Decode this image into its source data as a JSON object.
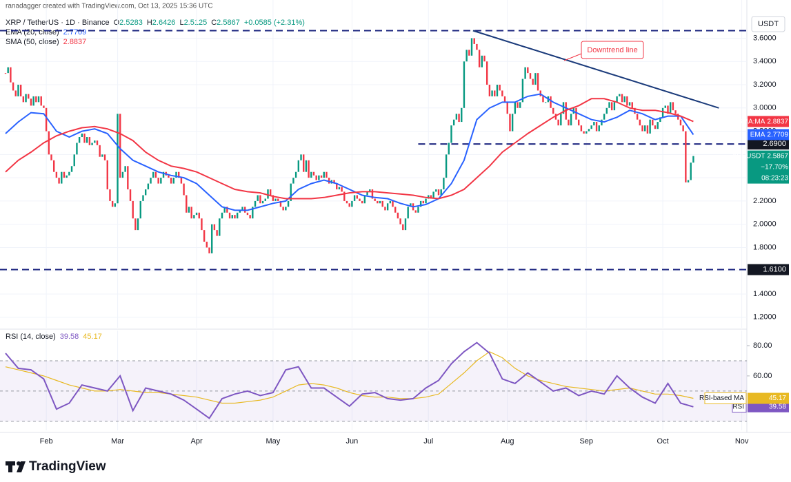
{
  "header": {
    "credit": "ranadagger created with TradingView.com, Oct 13, 2025 15:36 UTC",
    "symbol": "XRP / TetherUS · 1D · Binance",
    "ohlc": [
      {
        "key": "O",
        "value": 2.5283
      },
      {
        "key": "H",
        "value": 2.6426
      },
      {
        "key": "L",
        "value": 2.5125
      },
      {
        "key": "C",
        "value": 2.5867
      }
    ],
    "change": "+0.0585 (+2.31%)"
  },
  "footer": {
    "brand": "TradingView"
  },
  "chart_data": [
    {
      "type": "candlestick",
      "unit": "USDT",
      "xlim": [
        0,
        291
      ],
      "ylim": [
        1.11,
        3.81
      ],
      "grid": true,
      "yticks": [
        {
          "value": 3.6,
          "label": "3.6000"
        },
        {
          "value": 3.4,
          "label": "3.4000"
        },
        {
          "value": 3.2,
          "label": "3.2000"
        },
        {
          "value": 3.0,
          "label": "3.0000"
        },
        {
          "value": 2.8,
          "label": "2.8000"
        },
        {
          "value": 2.6,
          "label": "2.6000"
        },
        {
          "value": 2.4,
          "label": "2.4000"
        },
        {
          "value": 2.2,
          "label": "2.2000"
        },
        {
          "value": 2.0,
          "label": "2.0000"
        },
        {
          "value": 1.8,
          "label": "1.8000"
        },
        {
          "value": 1.6,
          "label": "1.6000"
        },
        {
          "value": 1.4,
          "label": "1.4000"
        },
        {
          "value": 1.2,
          "label": "1.2000"
        }
      ],
      "series": [
        {
          "name": "XRPUSDT",
          "up_color": "#089981",
          "down_color": "#f23645",
          "change": "−17.70%",
          "countdown": "08:23:23",
          "close": [
            3.3,
            3.35,
            3.22,
            3.15,
            3.1,
            3.2,
            3.1,
            3.05,
            3.12,
            3.08,
            3.02,
            3.1,
            3.05,
            3.1,
            3.02,
            3.0,
            2.8,
            2.6,
            2.55,
            2.45,
            2.4,
            2.35,
            2.45,
            2.4,
            2.42,
            2.45,
            2.5,
            2.6,
            2.7,
            2.75,
            2.78,
            2.7,
            2.75,
            2.68,
            2.7,
            2.72,
            2.68,
            2.58,
            2.6,
            2.55,
            2.3,
            2.2,
            2.15,
            2.18,
            2.95,
            2.4,
            2.45,
            2.5,
            2.3,
            2.2,
            2.05,
            1.95,
            2.05,
            2.2,
            2.25,
            2.3,
            2.35,
            2.4,
            2.45,
            2.4,
            2.35,
            2.4,
            2.45,
            2.42,
            2.4,
            2.35,
            2.4,
            2.45,
            2.4,
            2.35,
            2.25,
            2.1,
            2.15,
            2.05,
            2.08,
            2.1,
            2.05,
            1.95,
            1.85,
            1.8,
            1.75,
            2.0,
            1.95,
            1.9,
            2.05,
            2.1,
            2.15,
            2.1,
            2.05,
            2.08,
            2.05,
            2.1,
            2.12,
            2.15,
            2.1,
            2.08,
            2.05,
            2.15,
            2.2,
            2.25,
            2.18,
            2.2,
            2.22,
            2.3,
            2.25,
            2.2,
            2.22,
            2.2,
            2.15,
            2.12,
            2.15,
            2.2,
            2.35,
            2.4,
            2.45,
            2.55,
            2.6,
            2.45,
            2.55,
            2.4,
            2.45,
            2.42,
            2.38,
            2.42,
            2.4,
            2.45,
            2.4,
            2.35,
            2.38,
            2.35,
            2.3,
            2.32,
            2.28,
            2.2,
            2.18,
            2.15,
            2.2,
            2.25,
            2.22,
            2.2,
            2.18,
            2.25,
            2.28,
            2.3,
            2.22,
            2.2,
            2.18,
            2.2,
            2.15,
            2.12,
            2.18,
            2.2,
            2.15,
            2.1,
            2.05,
            2.0,
            1.95,
            2.05,
            2.15,
            2.18,
            2.12,
            2.1,
            2.15,
            2.2,
            2.18,
            2.22,
            2.25,
            2.22,
            2.28,
            2.3,
            2.25,
            2.3,
            2.4,
            2.6,
            2.7,
            2.85,
            2.9,
            2.95,
            2.88,
            3.0,
            3.4,
            3.5,
            3.45,
            3.6,
            3.55,
            3.5,
            3.35,
            3.45,
            3.4,
            3.2,
            3.1,
            3.15,
            3.1,
            3.2,
            3.15,
            3.1,
            3.05,
            2.95,
            2.8,
            2.95,
            3.05,
            3.0,
            3.05,
            3.25,
            3.35,
            3.3,
            3.25,
            3.2,
            3.3,
            3.15,
            3.1,
            3.05,
            3.05,
            3.1,
            3.0,
            2.95,
            2.9,
            2.85,
            2.95,
            3.05,
            2.9,
            2.85,
            2.95,
            3.0,
            2.9,
            2.85,
            2.8,
            2.78,
            2.8,
            2.82,
            2.85,
            2.88,
            2.8,
            2.85,
            2.9,
            2.95,
            3.0,
            3.05,
            2.98,
            3.05,
            3.1,
            3.12,
            3.05,
            3.1,
            3.02,
            3.05,
            3.0,
            2.95,
            2.9,
            2.85,
            2.8,
            2.85,
            2.78,
            2.9,
            2.85,
            2.82,
            2.88,
            2.92,
            3.0,
            3.02,
            2.95,
            3.05,
            2.98,
            2.95,
            2.9,
            2.85,
            2.8,
            2.36,
            2.38,
            2.53,
            2.5867
          ]
        }
      ],
      "lines": [
        {
          "name": "EMA (20, close)",
          "tag": "EMA",
          "color": "#2962ff",
          "x": [
            0,
            5,
            10,
            15,
            20,
            25,
            30,
            35,
            40,
            45,
            50,
            55,
            60,
            65,
            70,
            75,
            80,
            85,
            90,
            95,
            100,
            105,
            110,
            115,
            120,
            125,
            130,
            135,
            140,
            145,
            150,
            155,
            160,
            165,
            170,
            175,
            180,
            185,
            190,
            195,
            200,
            205,
            210,
            215,
            220,
            225,
            230,
            235,
            240,
            245,
            250,
            255,
            260,
            265,
            270
          ],
          "values": [
            2.78,
            2.88,
            2.96,
            2.95,
            2.8,
            2.75,
            2.8,
            2.82,
            2.78,
            2.65,
            2.55,
            2.5,
            2.45,
            2.42,
            2.4,
            2.35,
            2.25,
            2.15,
            2.12,
            2.12,
            2.15,
            2.18,
            2.2,
            2.3,
            2.35,
            2.38,
            2.35,
            2.3,
            2.25,
            2.23,
            2.22,
            2.18,
            2.15,
            2.17,
            2.22,
            2.35,
            2.55,
            2.9,
            3.0,
            3.05,
            3.05,
            3.1,
            3.12,
            3.05,
            3.0,
            2.95,
            2.9,
            2.88,
            2.92,
            2.98,
            2.95,
            2.9,
            2.93,
            2.93,
            2.7709
          ]
        },
        {
          "name": "SMA (50, close)",
          "tag": "SMA:MA",
          "color": "#f23645",
          "x": [
            0,
            5,
            10,
            15,
            20,
            25,
            30,
            35,
            40,
            45,
            50,
            55,
            60,
            65,
            70,
            75,
            80,
            85,
            90,
            95,
            100,
            105,
            110,
            115,
            120,
            125,
            130,
            135,
            140,
            145,
            150,
            155,
            160,
            165,
            170,
            175,
            180,
            185,
            190,
            195,
            200,
            205,
            210,
            215,
            220,
            225,
            230,
            235,
            240,
            245,
            250,
            255,
            260,
            265,
            270
          ],
          "values": [
            2.45,
            2.55,
            2.62,
            2.7,
            2.76,
            2.8,
            2.83,
            2.84,
            2.82,
            2.78,
            2.72,
            2.62,
            2.55,
            2.5,
            2.48,
            2.45,
            2.4,
            2.35,
            2.3,
            2.28,
            2.27,
            2.24,
            2.22,
            2.22,
            2.22,
            2.23,
            2.25,
            2.27,
            2.28,
            2.28,
            2.27,
            2.26,
            2.25,
            2.23,
            2.22,
            2.25,
            2.3,
            2.4,
            2.5,
            2.62,
            2.7,
            2.78,
            2.85,
            2.92,
            2.98,
            3.02,
            3.08,
            3.08,
            3.05,
            3.0,
            2.98,
            2.98,
            2.96,
            2.93,
            2.8837
          ]
        }
      ],
      "levels": [
        {
          "value": 3.665
        },
        {
          "value": 2.69,
          "label": "2.6900",
          "from": 162
        },
        {
          "value": 1.61,
          "label": "1.6100"
        }
      ],
      "trendline": {
        "label": "Downtrend line",
        "x": [
          183.5,
          280
        ],
        "y": [
          3.665,
          3.0
        ]
      }
    },
    {
      "type": "line",
      "title": "RSI (14, close)",
      "xlim": [
        0,
        291
      ],
      "ylim": [
        24,
        90
      ],
      "xticks": [
        {
          "value": 16,
          "label": "Feb"
        },
        {
          "value": 44,
          "label": "Mar"
        },
        {
          "value": 75,
          "label": "Apr"
        },
        {
          "value": 105,
          "label": "May"
        },
        {
          "value": 136,
          "label": "Jun"
        },
        {
          "value": 166,
          "label": "Jul"
        },
        {
          "value": 197,
          "label": "Aug"
        },
        {
          "value": 228,
          "label": "Sep"
        },
        {
          "value": 258,
          "label": "Oct"
        },
        {
          "value": 289,
          "label": "Nov"
        }
      ],
      "yticks": [
        {
          "value": 80,
          "label": "80.00"
        },
        {
          "value": 60,
          "label": "60.00"
        }
      ],
      "levels": [
        70,
        50,
        30
      ],
      "series": [
        {
          "name": "RSI",
          "color": "#7e57c2",
          "x": [
            0,
            5,
            10,
            15,
            20,
            25,
            30,
            35,
            40,
            45,
            50,
            55,
            60,
            65,
            70,
            75,
            80,
            85,
            90,
            95,
            100,
            105,
            110,
            115,
            120,
            125,
            130,
            135,
            140,
            145,
            150,
            155,
            160,
            165,
            170,
            175,
            180,
            185,
            190,
            195,
            200,
            205,
            210,
            215,
            220,
            225,
            230,
            235,
            240,
            245,
            250,
            255,
            260,
            265,
            270
          ],
          "values": [
            75,
            65,
            64,
            58,
            38,
            42,
            54,
            52,
            50,
            60,
            37,
            52,
            50,
            48,
            44,
            38,
            32,
            45,
            48,
            50,
            47,
            49,
            64,
            66,
            52,
            52,
            46,
            40,
            48,
            49,
            45,
            44,
            45,
            52,
            57,
            68,
            76,
            82,
            75,
            58,
            55,
            62,
            56,
            50,
            52,
            47,
            50,
            48,
            60,
            52,
            46,
            42,
            55,
            42,
            39.58
          ]
        },
        {
          "name": "RSI-based MA",
          "color": "#e8b923",
          "x": [
            0,
            5,
            10,
            15,
            20,
            25,
            30,
            35,
            40,
            45,
            50,
            55,
            60,
            65,
            70,
            75,
            80,
            85,
            90,
            95,
            100,
            105,
            110,
            115,
            120,
            125,
            130,
            135,
            140,
            145,
            150,
            155,
            160,
            165,
            170,
            175,
            180,
            185,
            190,
            195,
            200,
            205,
            210,
            215,
            220,
            225,
            230,
            235,
            240,
            245,
            250,
            255,
            260,
            265,
            270
          ],
          "values": [
            66,
            64,
            62,
            60,
            57,
            54,
            52,
            50,
            50,
            51,
            50,
            49,
            49,
            48,
            47,
            46,
            44,
            42,
            42,
            43,
            44,
            46,
            50,
            54,
            55,
            54,
            52,
            49,
            47,
            46,
            46,
            45,
            45,
            46,
            48,
            55,
            62,
            70,
            76,
            72,
            65,
            60,
            57,
            55,
            53,
            52,
            51,
            50,
            51,
            52,
            50,
            48,
            48,
            47,
            45.17
          ]
        }
      ]
    }
  ]
}
